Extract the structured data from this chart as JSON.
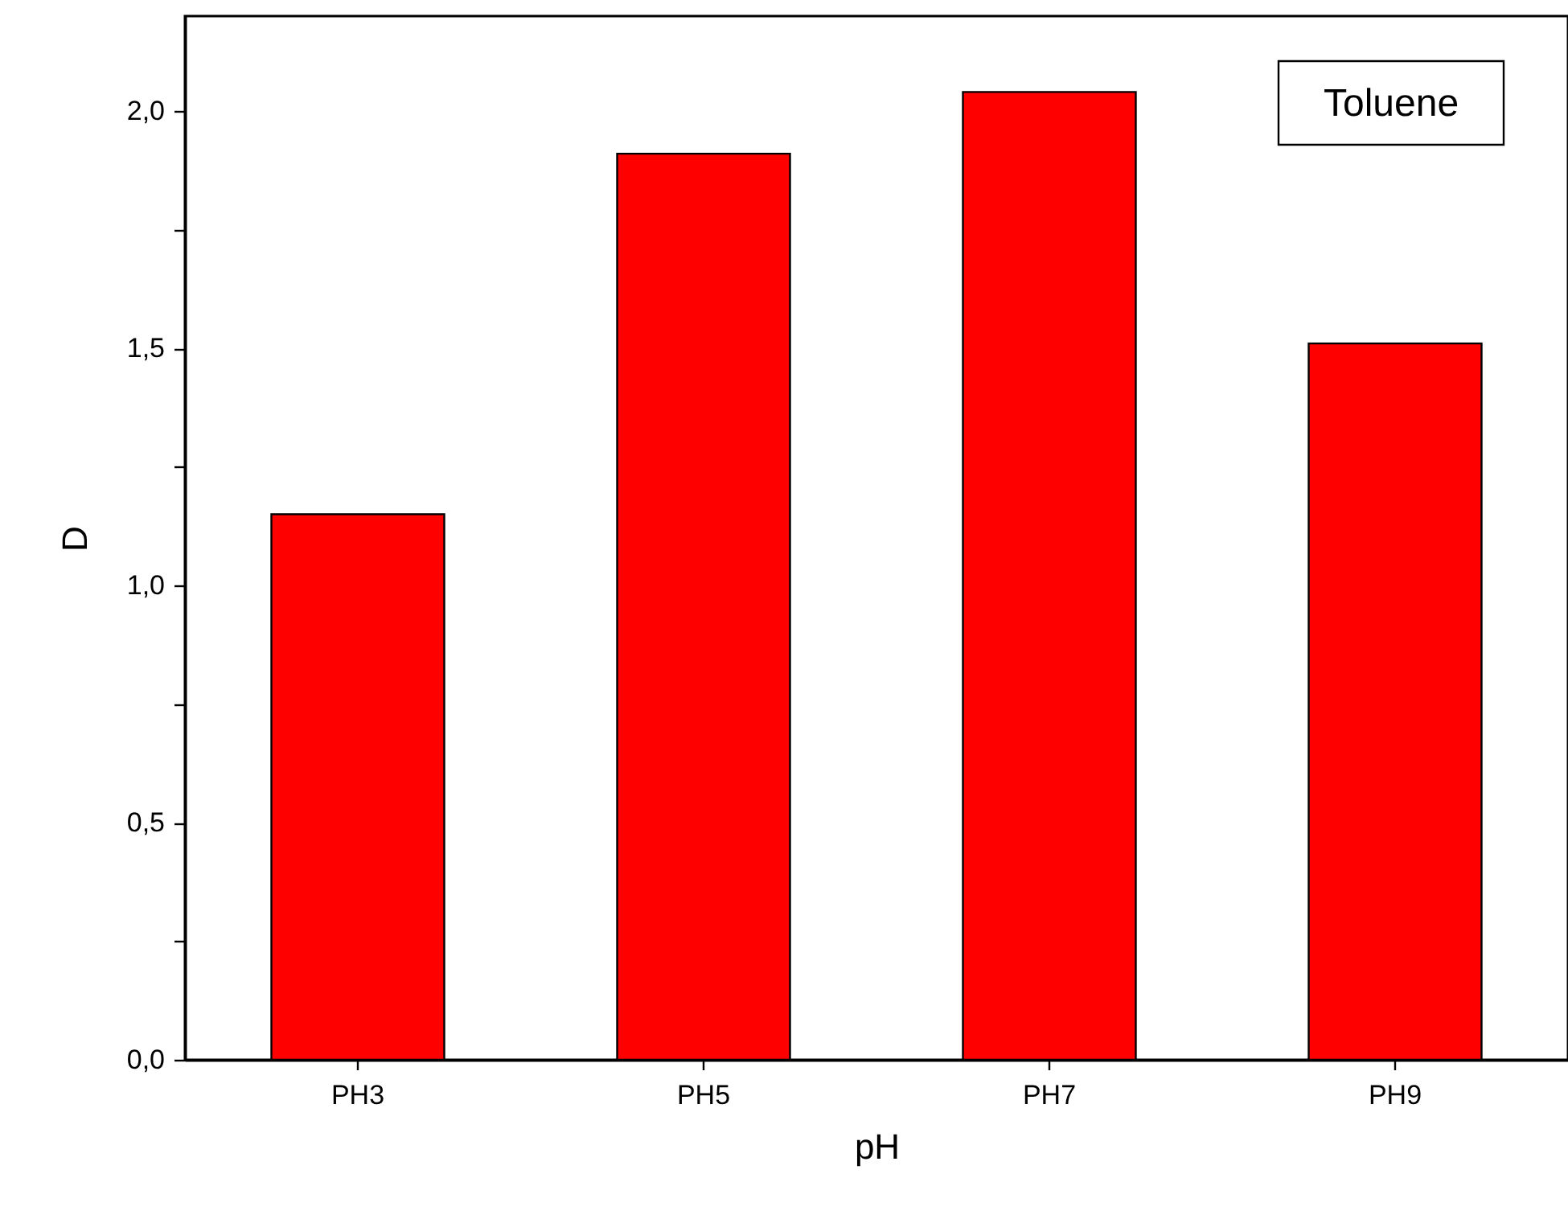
{
  "chart_data": {
    "type": "bar",
    "xlabel": "pH",
    "ylabel": "D",
    "categories": [
      "PH3",
      "PH5",
      "PH7",
      "PH9"
    ],
    "values": [
      1.15,
      1.91,
      2.04,
      1.51
    ],
    "color": "#ff0000",
    "ylim": [
      0,
      2.2
    ],
    "yticks": [
      {
        "value": 0,
        "label": "0,0"
      },
      {
        "value": 0.25,
        "label": null
      },
      {
        "value": 0.5,
        "label": "0,5"
      },
      {
        "value": 0.75,
        "label": null
      },
      {
        "value": 1,
        "label": "1,0"
      },
      {
        "value": 1.25,
        "label": null
      },
      {
        "value": 1.5,
        "label": "1,5"
      },
      {
        "value": 1.75,
        "label": null
      },
      {
        "value": 2,
        "label": "2,0"
      }
    ],
    "annotations": [
      "Toluene"
    ]
  }
}
